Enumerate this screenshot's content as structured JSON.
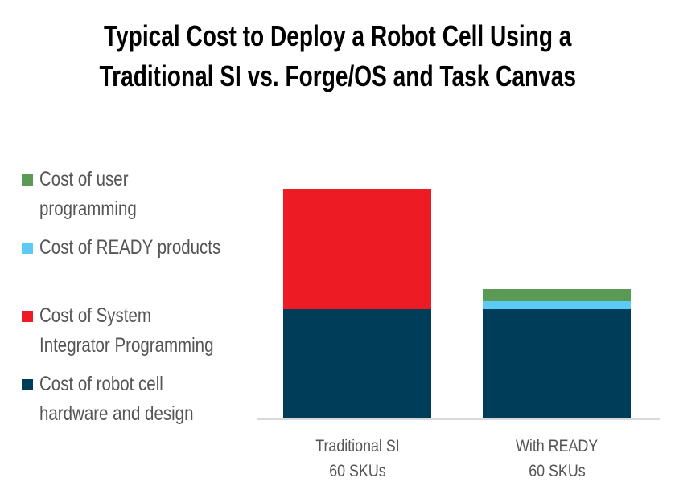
{
  "chart_data": {
    "type": "bar",
    "stacked": true,
    "title": "Typical Cost to Deploy a Robot Cell Using a Traditional SI vs. Forge/OS and Task Canvas",
    "title_lines": [
      "Typical Cost to Deploy a Robot Cell Using a",
      "Traditional SI vs. Forge/OS and Task Canvas"
    ],
    "categories": [
      [
        "Traditional SI",
        "60 SKUs"
      ],
      [
        "With READY",
        "60 SKUs"
      ]
    ],
    "series": [
      {
        "name": "Cost of robot cell hardware and design",
        "legend_lines": [
          "Cost of robot cell",
          "hardware and design"
        ],
        "color": "#003d58",
        "values": [
          136,
          136
        ]
      },
      {
        "name": "Cost of System Integrator Programming",
        "legend_lines": [
          "Cost of System",
          "Integrator Programming"
        ],
        "color": "#ed1c24",
        "values": [
          150,
          0
        ]
      },
      {
        "name": "Cost of READY products",
        "legend_lines": [
          "Cost of READY products"
        ],
        "color": "#5bcbf5",
        "values": [
          0,
          10
        ]
      },
      {
        "name": "Cost of user programming",
        "legend_lines": [
          "Cost of user",
          "programming"
        ],
        "color": "#5b9a55",
        "values": [
          0,
          15
        ]
      }
    ],
    "ylim": [
      0,
      286
    ],
    "y_axis_shown": false,
    "grid": false,
    "legend_placement": "left"
  }
}
